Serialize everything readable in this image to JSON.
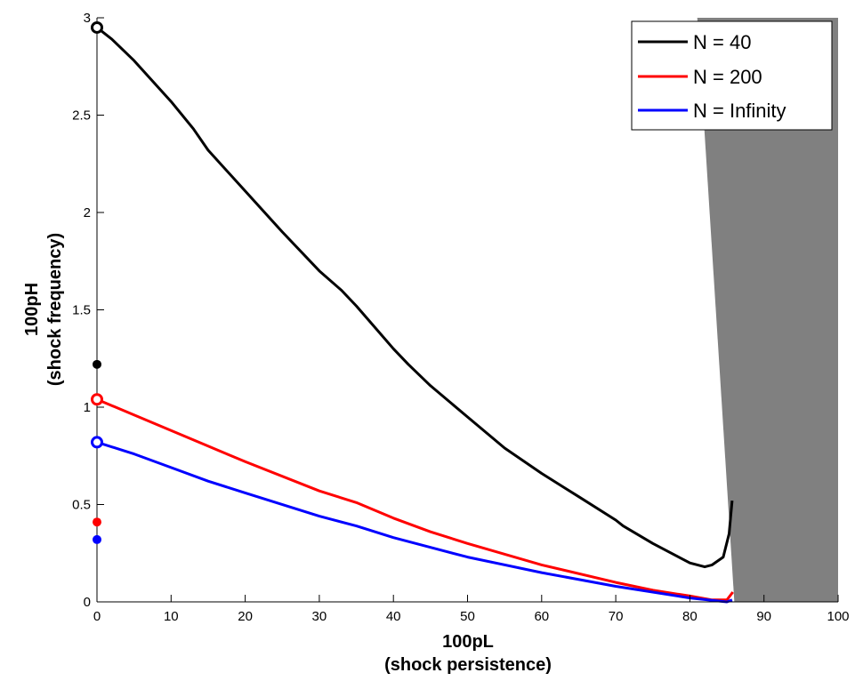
{
  "chart_data": {
    "type": "line",
    "title": "",
    "xlabel": "100pL",
    "xlabel_sub": "(shock persistence)",
    "ylabel": "100pH",
    "ylabel_sub": "(shock frequency)",
    "xlim": [
      0,
      100
    ],
    "ylim": [
      0,
      3
    ],
    "xticks": [
      "0",
      "10",
      "20",
      "30",
      "40",
      "50",
      "60",
      "70",
      "80",
      "90",
      "100"
    ],
    "yticks": [
      "0",
      "0.5",
      "1",
      "1.5",
      "2",
      "2.5",
      "3"
    ],
    "grid": false,
    "legend_position": "top-right",
    "shaded_region": {
      "color": "#808080",
      "x_top": 81,
      "x_bottom": 86,
      "x_end": 100
    },
    "series": [
      {
        "name": "N = 40",
        "color": "#000000",
        "x": [
          0,
          2,
          5,
          10,
          13,
          15,
          20,
          25,
          30,
          33,
          35,
          40,
          42,
          45,
          50,
          55,
          60,
          65,
          70,
          71,
          75,
          80,
          82,
          83,
          84.5,
          85.3,
          85.7
        ],
        "y": [
          2.95,
          2.89,
          2.78,
          2.57,
          2.43,
          2.32,
          2.11,
          1.9,
          1.7,
          1.6,
          1.52,
          1.3,
          1.22,
          1.11,
          0.95,
          0.79,
          0.66,
          0.54,
          0.42,
          0.39,
          0.3,
          0.2,
          0.18,
          0.19,
          0.23,
          0.35,
          0.52
        ],
        "open_marker": [
          0,
          2.95
        ],
        "filled_marker": [
          0,
          1.22
        ]
      },
      {
        "name": "N = 200",
        "color": "#ff0000",
        "x": [
          0,
          5,
          10,
          15,
          20,
          30,
          35,
          40,
          45,
          50,
          60,
          70,
          75,
          80,
          83,
          85,
          85.8
        ],
        "y": [
          1.04,
          0.96,
          0.88,
          0.8,
          0.72,
          0.57,
          0.51,
          0.43,
          0.36,
          0.3,
          0.19,
          0.1,
          0.06,
          0.03,
          0.01,
          0.01,
          0.05
        ],
        "open_marker": [
          0,
          1.04
        ],
        "filled_marker": [
          0,
          0.41
        ]
      },
      {
        "name": "N = Infinity",
        "color": "#0000ff",
        "x": [
          0,
          5,
          10,
          15,
          20,
          30,
          35,
          40,
          45,
          50,
          60,
          70,
          80,
          85,
          85.7
        ],
        "y": [
          0.82,
          0.76,
          0.69,
          0.62,
          0.56,
          0.44,
          0.39,
          0.33,
          0.28,
          0.23,
          0.15,
          0.08,
          0.02,
          0.0,
          0.01
        ],
        "open_marker": [
          0,
          0.82
        ],
        "filled_marker": [
          0,
          0.32
        ]
      }
    ]
  }
}
